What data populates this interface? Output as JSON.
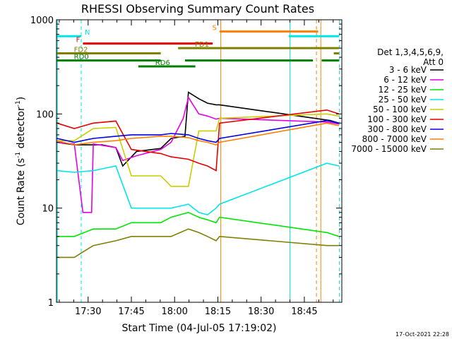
{
  "chart_data": {
    "type": "line",
    "title": "RHESSI Observing Summary Count Rates",
    "xlabel": "Start Time (04-Jul-05 17:19:02)",
    "ylabel": "Count Rate (s⁻¹ detector⁻¹)",
    "ylabel_parts": [
      "Count Rate (s",
      "-1",
      " detector",
      "-1",
      ")"
    ],
    "yscale": "log",
    "ylim": [
      1,
      1000
    ],
    "xlim": [
      17.3172,
      18.9667
    ],
    "x_ticks": [
      {
        "label": "17:30",
        "h": 17.5
      },
      {
        "label": "17:45",
        "h": 17.75
      },
      {
        "label": "18:00",
        "h": 18.0
      },
      {
        "label": "18:15",
        "h": 18.25
      },
      {
        "label": "18:30",
        "h": 18.5
      },
      {
        "label": "18:45",
        "h": 18.75
      }
    ],
    "y_ticks": [
      {
        "label": "1",
        "v": 1
      },
      {
        "label": "10",
        "v": 10
      },
      {
        "label": "100",
        "v": 100
      },
      {
        "label": "1000",
        "v": 1000
      }
    ],
    "legend_header": [
      "Det 1,3,4,5,6,9,",
      "Att 0"
    ],
    "legend_position": "right",
    "footer": "17-Oct-2021 22:28",
    "series": [
      {
        "name": "3 - 6 keV",
        "color": "#000000",
        "points": [
          [
            17.32,
            50
          ],
          [
            17.42,
            47
          ],
          [
            17.58,
            47
          ],
          [
            17.66,
            44
          ],
          [
            17.7,
            28
          ],
          [
            17.78,
            40
          ],
          [
            17.92,
            43
          ],
          [
            17.98,
            55
          ],
          [
            18.06,
            58
          ],
          [
            18.08,
            170
          ],
          [
            18.14,
            145
          ],
          [
            18.19,
            130
          ],
          [
            18.24,
            125
          ],
          [
            18.26,
            125
          ],
          [
            18.9,
            85
          ],
          [
            18.95,
            80
          ]
        ]
      },
      {
        "name": "6 - 12 keV",
        "color": "#e600e6",
        "points": [
          [
            17.32,
            50
          ],
          [
            17.42,
            48
          ],
          [
            17.47,
            9
          ],
          [
            17.52,
            9
          ],
          [
            17.53,
            48
          ],
          [
            17.66,
            44
          ],
          [
            17.7,
            32
          ],
          [
            17.78,
            36
          ],
          [
            17.92,
            42
          ],
          [
            17.98,
            50
          ],
          [
            18.05,
            90
          ],
          [
            18.08,
            150
          ],
          [
            18.14,
            100
          ],
          [
            18.19,
            95
          ],
          [
            18.24,
            88
          ],
          [
            18.26,
            90
          ],
          [
            18.88,
            82
          ],
          [
            18.95,
            78
          ]
        ]
      },
      {
        "name": "12 - 25 keV",
        "color": "#00e600",
        "points": [
          [
            17.32,
            5
          ],
          [
            17.42,
            5
          ],
          [
            17.53,
            6
          ],
          [
            17.66,
            6
          ],
          [
            17.75,
            7
          ],
          [
            17.92,
            7
          ],
          [
            17.98,
            8
          ],
          [
            18.08,
            9
          ],
          [
            18.14,
            8
          ],
          [
            18.19,
            7.5
          ],
          [
            18.24,
            7
          ],
          [
            18.26,
            8
          ],
          [
            18.88,
            5.5
          ],
          [
            18.95,
            5
          ]
        ]
      },
      {
        "name": "25 - 50 keV",
        "color": "#00e6e6",
        "points": [
          [
            17.32,
            25
          ],
          [
            17.42,
            24
          ],
          [
            17.53,
            25
          ],
          [
            17.66,
            28
          ],
          [
            17.75,
            10
          ],
          [
            17.92,
            10
          ],
          [
            17.98,
            10
          ],
          [
            18.08,
            11
          ],
          [
            18.14,
            9
          ],
          [
            18.19,
            8.5
          ],
          [
            18.24,
            10
          ],
          [
            18.26,
            11
          ],
          [
            18.88,
            30
          ],
          [
            18.95,
            28
          ]
        ]
      },
      {
        "name": "50 - 100 keV",
        "color": "#cccc00",
        "points": [
          [
            17.32,
            52
          ],
          [
            17.42,
            52
          ],
          [
            17.53,
            70
          ],
          [
            17.66,
            72
          ],
          [
            17.75,
            22
          ],
          [
            17.92,
            22
          ],
          [
            17.98,
            17
          ],
          [
            18.08,
            17
          ],
          [
            18.14,
            66
          ],
          [
            18.19,
            66
          ],
          [
            18.24,
            66
          ],
          [
            18.26,
            90
          ],
          [
            18.88,
            100
          ],
          [
            18.95,
            95
          ]
        ]
      },
      {
        "name": "100 - 300 keV",
        "color": "#e60000",
        "points": [
          [
            17.32,
            80
          ],
          [
            17.42,
            70
          ],
          [
            17.53,
            80
          ],
          [
            17.66,
            84
          ],
          [
            17.75,
            42
          ],
          [
            17.92,
            38
          ],
          [
            17.98,
            35
          ],
          [
            18.08,
            33
          ],
          [
            18.14,
            30
          ],
          [
            18.19,
            28
          ],
          [
            18.24,
            25
          ],
          [
            18.26,
            80
          ],
          [
            18.88,
            110
          ],
          [
            18.95,
            100
          ]
        ]
      },
      {
        "name": "300 - 800 keV",
        "color": "#0000e6",
        "points": [
          [
            17.32,
            55
          ],
          [
            17.42,
            50
          ],
          [
            17.53,
            55
          ],
          [
            17.66,
            58
          ],
          [
            17.75,
            60
          ],
          [
            17.92,
            60
          ],
          [
            17.98,
            62
          ],
          [
            18.08,
            60
          ],
          [
            18.14,
            55
          ],
          [
            18.19,
            52
          ],
          [
            18.24,
            50
          ],
          [
            18.26,
            55
          ],
          [
            18.88,
            85
          ],
          [
            18.95,
            80
          ]
        ]
      },
      {
        "name": "800 - 7000 keV",
        "color": "#ff8000",
        "points": [
          [
            17.32,
            52
          ],
          [
            17.42,
            47
          ],
          [
            17.53,
            50
          ],
          [
            17.66,
            52
          ],
          [
            17.75,
            55
          ],
          [
            17.92,
            58
          ],
          [
            17.98,
            58
          ],
          [
            18.08,
            56
          ],
          [
            18.14,
            52
          ],
          [
            18.19,
            50
          ],
          [
            18.24,
            47
          ],
          [
            18.26,
            50
          ],
          [
            18.88,
            80
          ],
          [
            18.95,
            75
          ]
        ]
      },
      {
        "name": "7000 - 15000 keV",
        "color": "#808000",
        "points": [
          [
            17.32,
            3
          ],
          [
            17.42,
            3
          ],
          [
            17.53,
            4
          ],
          [
            17.66,
            4.5
          ],
          [
            17.75,
            5
          ],
          [
            17.92,
            5
          ],
          [
            17.98,
            5
          ],
          [
            18.08,
            6
          ],
          [
            18.14,
            5.5
          ],
          [
            18.19,
            5
          ],
          [
            18.24,
            4.5
          ],
          [
            18.26,
            5
          ],
          [
            18.88,
            4
          ],
          [
            18.95,
            4
          ]
        ]
      }
    ],
    "flag_bars": [
      {
        "label": "N",
        "color": "#00e6e6",
        "value": 670,
        "segments": [
          [
            17.32,
            17.46
          ],
          [
            18.66,
            18.95
          ]
        ]
      },
      {
        "label": "S",
        "color": "#ff8000",
        "value": 750,
        "segments": [
          [
            18.26,
            18.83
          ]
        ]
      },
      {
        "label": "F",
        "color": "#e60000",
        "value": 560,
        "segments": [
          [
            17.47,
            18.22
          ]
        ]
      },
      {
        "label": "FD1",
        "color": "#808000",
        "value": 500,
        "segments": [
          [
            18.02,
            18.95
          ]
        ]
      },
      {
        "label": "FD2",
        "color": "#808000",
        "value": 440,
        "segments": [
          [
            17.32,
            17.92
          ],
          [
            18.92,
            18.95
          ]
        ]
      },
      {
        "label": "RD0",
        "color": "#008000",
        "value": 370,
        "segments": [
          [
            17.32,
            17.92
          ],
          [
            18.06,
            18.8
          ],
          [
            18.85,
            18.95
          ]
        ]
      },
      {
        "label": "RD6",
        "color": "#008000",
        "value": 320,
        "segments": [
          [
            17.79,
            18.12
          ]
        ]
      }
    ],
    "vertical_lines": [
      {
        "h": 17.322,
        "color": "#00e6e6",
        "style": "solid"
      },
      {
        "h": 17.46,
        "color": "#00e6e6",
        "style": "dashed"
      },
      {
        "h": 18.267,
        "color": "#ff8000",
        "style": "solid"
      },
      {
        "h": 18.667,
        "color": "#00e6e6",
        "style": "solid"
      },
      {
        "h": 18.82,
        "color": "#ff8000",
        "style": "dashed"
      },
      {
        "h": 18.845,
        "color": "#ff8000",
        "style": "solid"
      },
      {
        "h": 18.952,
        "color": "#00e6e6",
        "style": "dashed"
      }
    ]
  }
}
